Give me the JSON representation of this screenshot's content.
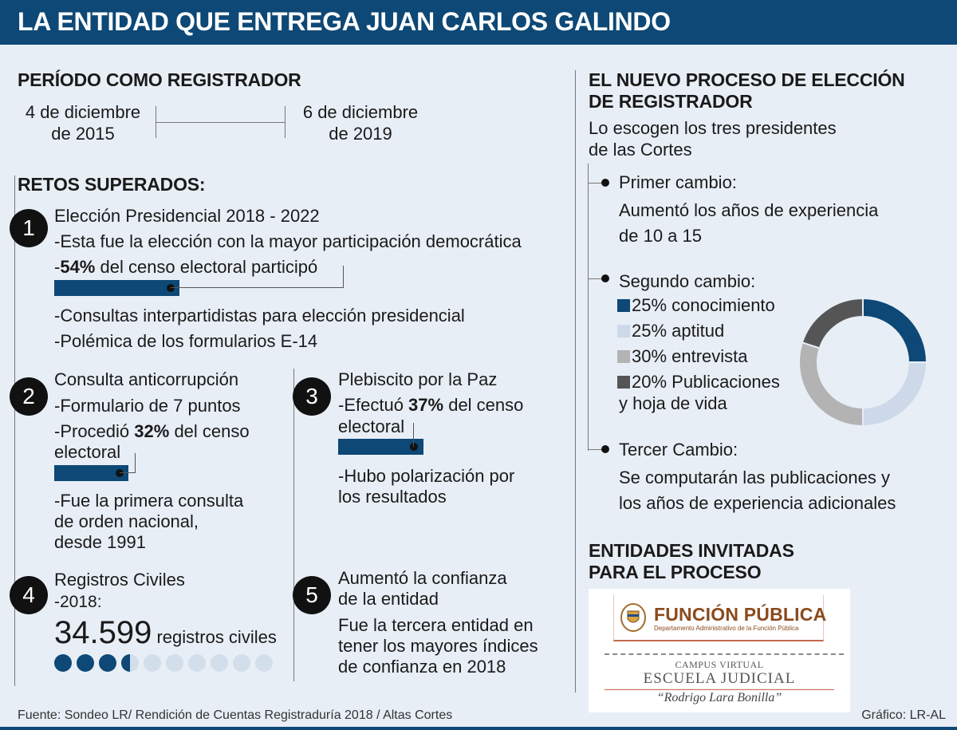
{
  "title": "LA ENTIDAD QUE ENTREGA JUAN CARLOS GALINDO",
  "period": {
    "heading": "PERÍODO COMO REGISTRADOR",
    "start_line1": "4 de diciembre",
    "start_line2": "de 2015",
    "end_line1": "6 de diciembre",
    "end_line2": "de 2019"
  },
  "retos": {
    "heading": "RETOS SUPERADOS:",
    "items": [
      {
        "number": "1",
        "title": "Elección Presidencial 2018 - 2022",
        "line1": "-Esta fue la elección con la mayor participación democrática",
        "pct_prefix": "-",
        "pct": "54%",
        "pct_suffix": " del censo electoral participó",
        "bar_value": 54,
        "line3": "-Consultas interpartidistas para elección presidencial",
        "line4": "-Polémica de los formularios E-14"
      },
      {
        "number": "2",
        "title": "Consulta anticorrupción",
        "line1": "-Formulario de 7 puntos",
        "pct_prefix": "-Procedió ",
        "pct": "32%",
        "pct_suffix": " del censo",
        "pct_line2": "electoral",
        "bar_value": 32,
        "line3": "-Fue la primera consulta",
        "line4": "de orden nacional,",
        "line5": "desde 1991"
      },
      {
        "number": "3",
        "title": "Plebiscito por la Paz",
        "pct_prefix": "-Efectuó ",
        "pct": "37%",
        "pct_suffix": " del censo",
        "pct_line2": "electoral",
        "bar_value": 37,
        "line3": "-Hubo polarización por",
        "line4": "los resultados"
      },
      {
        "number": "4",
        "title": "Registros Civiles",
        "line1": "-2018:",
        "big_number": "34.599",
        "big_suffix": " registros civiles",
        "filled_circles": 3.5,
        "total_circles": 10
      },
      {
        "number": "5",
        "title_line1": "Aumentó la confianza",
        "title_line2": "de la entidad",
        "line1": "Fue la tercera entidad en",
        "line2": "tener los mayores índices",
        "line3": "de confianza en 2018"
      }
    ]
  },
  "proceso": {
    "heading_line1": "EL NUEVO PROCESO DE ELECCIÓN",
    "heading_line2": "DE REGISTRADOR",
    "intro_line1": "Lo escogen los tres presidentes",
    "intro_line2": "de las Cortes",
    "cambio1_title": "Primer cambio:",
    "cambio1_line1": "Aumentó los años de experiencia",
    "cambio1_line2": "de 10 a 15",
    "cambio2_title": "Segundo cambio:",
    "cambio3_title": "Tercer Cambio:",
    "cambio3_line1": "Se computarán las publicaciones y",
    "cambio3_line2": "los años de experiencia adicionales"
  },
  "chart_data": {
    "type": "pie",
    "categories": [
      "conocimiento",
      "aptitud",
      "entrevista",
      "Publicaciones y hoja de vida"
    ],
    "values": [
      25,
      25,
      30,
      20
    ],
    "legend_labels": [
      "25% conocimiento",
      "25% aptitud",
      "30% entrevista",
      "20% Publicaciones"
    ],
    "legend_extra": "y hoja de vida",
    "colors": [
      "#0d4876",
      "#cdd8e8",
      "#b3b3b3",
      "#555555"
    ],
    "donut": true,
    "legend_position": "left"
  },
  "entidades": {
    "heading_line1": "ENTIDADES INVITADAS",
    "heading_line2": "PARA EL PROCESO",
    "logo1_title": "FUNCIÓN PÚBLICA",
    "logo1_sub": "Departamento Administrativo de la Función Pública",
    "logo2_line1": "CAMPUS VIRTUAL",
    "logo2_line2": "ESCUELA JUDICIAL",
    "logo2_line3": "“Rodrigo Lara Bonilla”"
  },
  "footer": {
    "source": "Fuente: Sondeo LR/ Rendición de Cuentas Registraduría 2018 / Altas Cortes",
    "credit": "Gráfico: LR-AL"
  },
  "colors": {
    "brand": "#0d4876",
    "background": "#e8eef6"
  }
}
